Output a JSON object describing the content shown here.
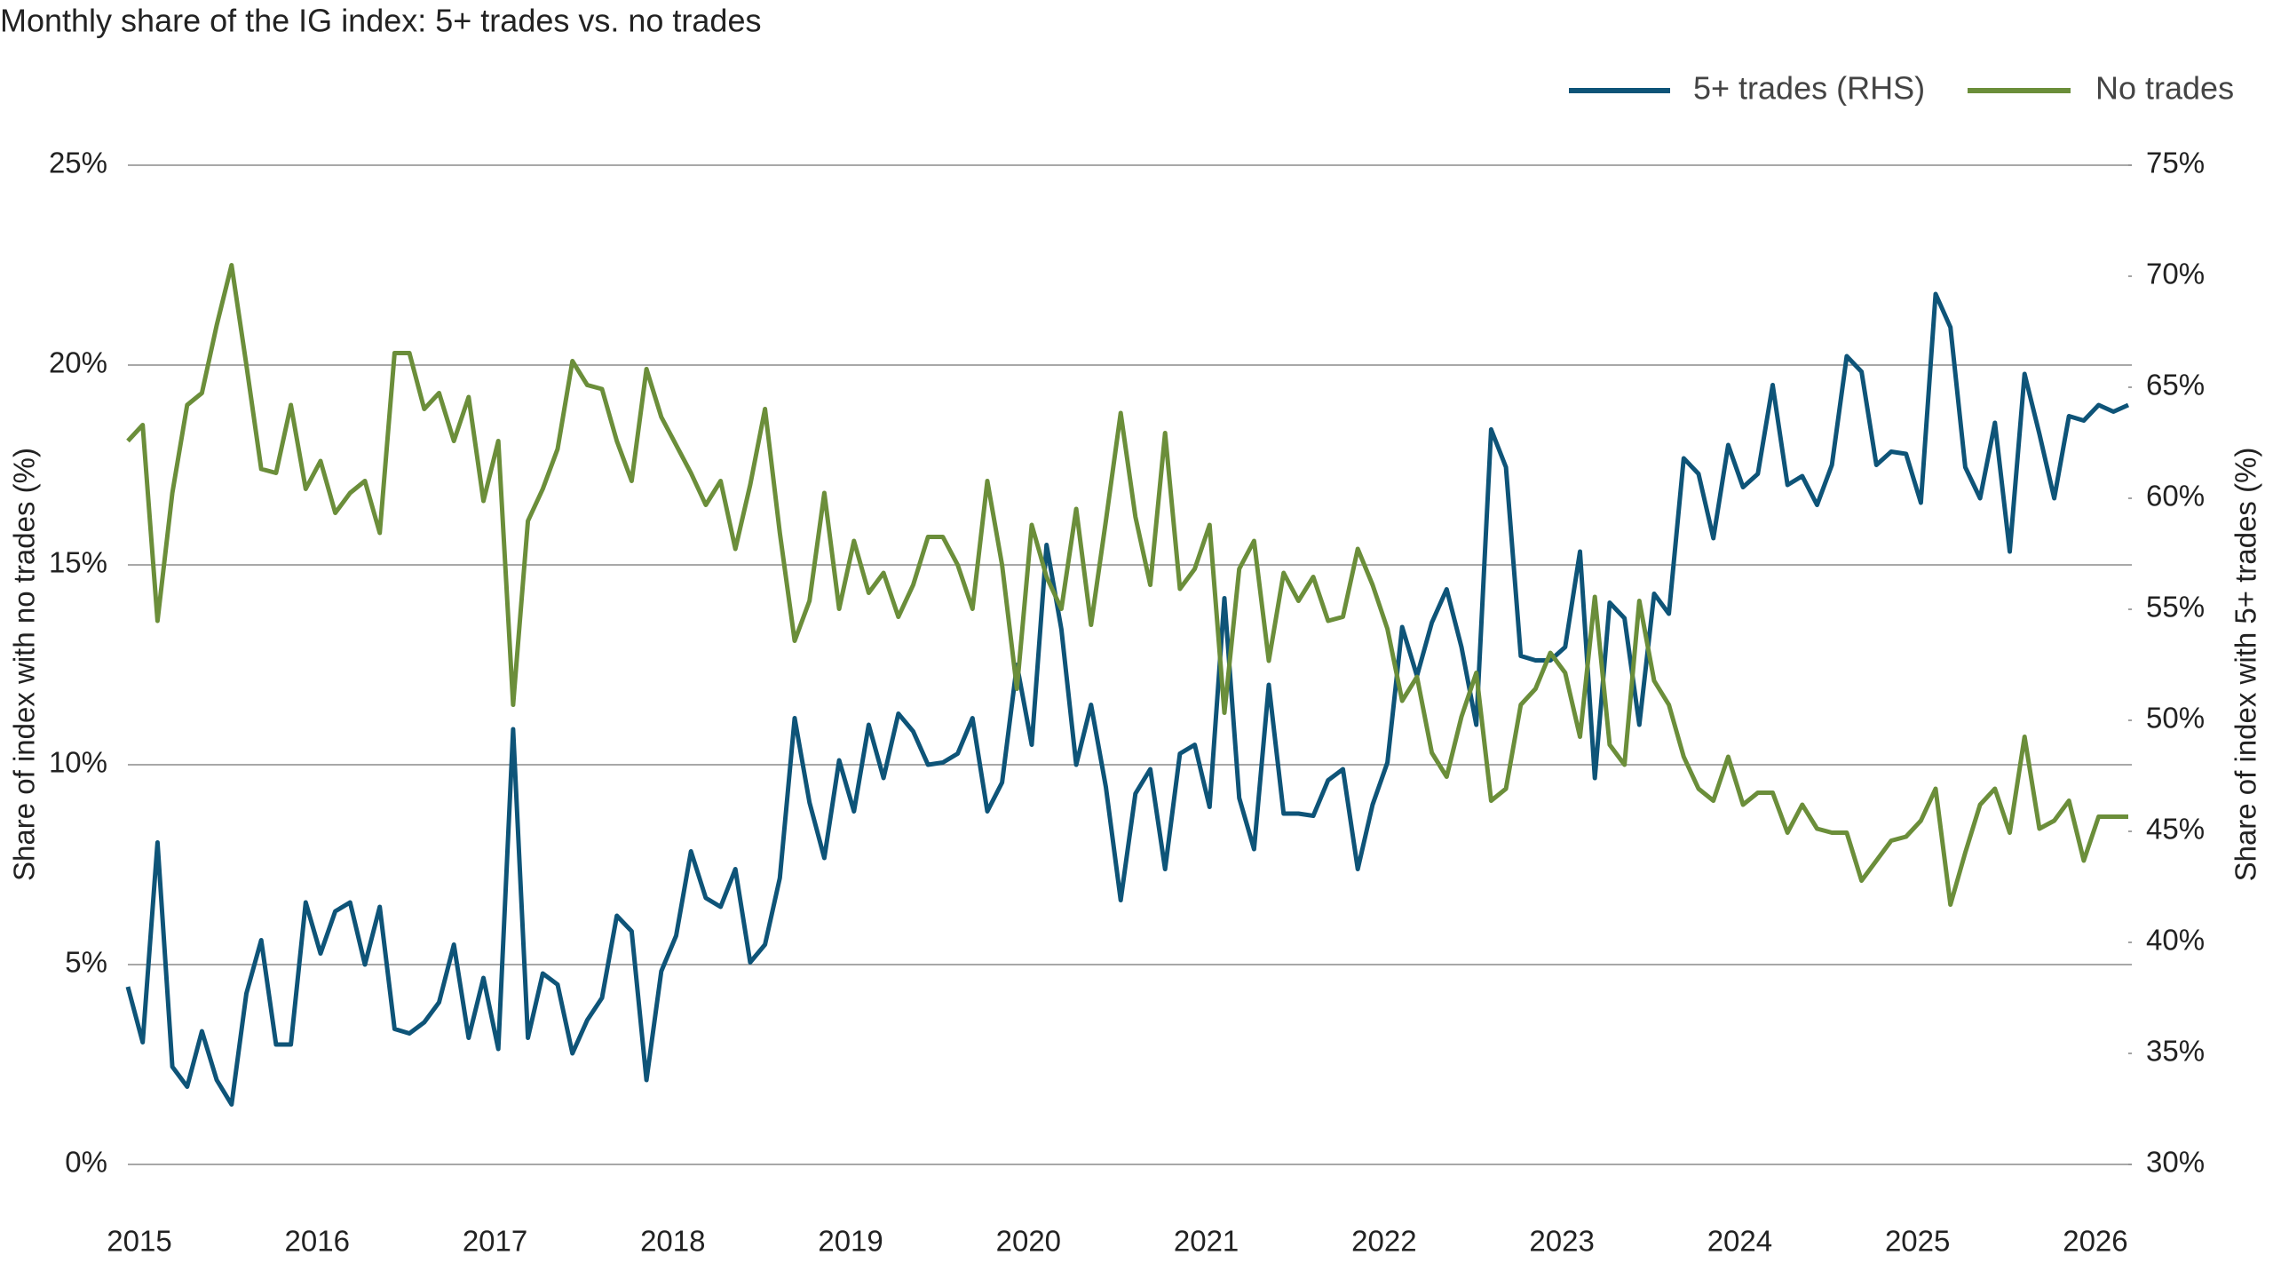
{
  "chart_data": {
    "type": "line",
    "title": "Monthly share of the IG index: 5+ trades vs. no trades",
    "y_label": "Share of index with no trades (%)",
    "y2_label": "Share of index with 5+ trades (%)",
    "categories": [
      "2015",
      null,
      null,
      null,
      null,
      null,
      null,
      null,
      null,
      null,
      null,
      null,
      "2016",
      null,
      null,
      null,
      null,
      null,
      null,
      null,
      null,
      null,
      null,
      null,
      "2017",
      null,
      null,
      null,
      null,
      null,
      null,
      null,
      null,
      null,
      null,
      null,
      "2018",
      null,
      null,
      null,
      null,
      null,
      null,
      null,
      null,
      null,
      null,
      null,
      "2019",
      null,
      null,
      null,
      null,
      null,
      null,
      null,
      null,
      null,
      null,
      null,
      "2020",
      null,
      null,
      null,
      null,
      null,
      null,
      null,
      null,
      null,
      null,
      null,
      "2021",
      null,
      null,
      null,
      null,
      null,
      null,
      null,
      null,
      null,
      null,
      null,
      "2022",
      null,
      null,
      null,
      null,
      null,
      null,
      null,
      null,
      null,
      null,
      null,
      "2023",
      null,
      null,
      null,
      null,
      null,
      null,
      null,
      null,
      null,
      null,
      null,
      "2024",
      null,
      null,
      null,
      null,
      null,
      null,
      null,
      null,
      null,
      null,
      null,
      "2025",
      null,
      null,
      null,
      null,
      null,
      null,
      null,
      null,
      null,
      null,
      null,
      "2026",
      null,
      null,
      null
    ],
    "ylim": [
      0,
      25
    ],
    "yticks": [
      {
        "value": 0,
        "label": "0%"
      },
      {
        "value": 5,
        "label": "5%"
      },
      {
        "value": 10,
        "label": "10%"
      },
      {
        "value": 15,
        "label": "15%"
      },
      {
        "value": 20,
        "label": "20%"
      },
      {
        "value": 25,
        "label": "25%"
      }
    ],
    "y2lim": [
      30,
      75
    ],
    "y2ticks": [
      {
        "value": 30,
        "label": "30%"
      },
      {
        "value": 35,
        "label": "35%"
      },
      {
        "value": 40,
        "label": "40%"
      },
      {
        "value": 45,
        "label": "45%"
      },
      {
        "value": 50,
        "label": "50%"
      },
      {
        "value": 55,
        "label": "55%"
      },
      {
        "value": 60,
        "label": "60%"
      },
      {
        "value": 65,
        "label": "65%"
      },
      {
        "value": 70,
        "label": "70%"
      },
      {
        "value": 75,
        "label": "75%"
      }
    ],
    "grid": true,
    "legend": "top-right",
    "series": [
      {
        "name": "5+ trades (RHS)",
        "color": "#0e5478",
        "axis": "y2",
        "values": [
          38.0,
          35.5,
          44.5,
          34.4,
          33.5,
          36.0,
          33.8,
          32.7,
          37.7,
          40.1,
          35.4,
          35.4,
          41.8,
          39.5,
          41.4,
          41.8,
          39.0,
          41.6,
          36.1,
          35.9,
          36.4,
          37.3,
          39.9,
          35.7,
          38.4,
          35.2,
          49.6,
          35.7,
          38.6,
          38.1,
          35.0,
          36.5,
          37.5,
          41.2,
          40.5,
          33.8,
          38.7,
          40.3,
          44.1,
          42.0,
          41.6,
          43.3,
          39.1,
          39.9,
          42.9,
          50.1,
          46.3,
          43.8,
          48.2,
          45.9,
          49.8,
          47.4,
          50.3,
          49.5,
          48.0,
          48.1,
          48.5,
          50.1,
          45.9,
          47.2,
          52.5,
          48.9,
          57.9,
          54.1,
          48.0,
          50.7,
          47.0,
          41.9,
          46.7,
          47.8,
          43.3,
          48.5,
          48.9,
          46.1,
          55.5,
          46.5,
          44.2,
          51.6,
          45.8,
          45.8,
          45.7,
          47.3,
          47.8,
          43.3,
          46.2,
          48.1,
          54.2,
          52.0,
          54.4,
          55.9,
          53.3,
          49.8,
          63.1,
          61.4,
          52.9,
          52.7,
          52.7,
          53.3,
          57.6,
          47.4,
          55.3,
          54.6,
          49.8,
          55.7,
          54.8,
          61.8,
          61.1,
          58.2,
          62.4,
          60.5,
          61.1,
          65.1,
          60.6,
          61.0,
          59.7,
          61.5,
          66.4,
          65.7,
          61.5,
          62.1,
          62.0,
          59.8,
          69.2,
          67.7,
          61.4,
          60.0,
          63.4,
          57.6,
          65.6,
          62.9,
          60.0,
          63.7,
          63.5,
          64.2,
          63.9,
          64.2
        ]
      },
      {
        "name": "No trades",
        "color": "#6b8e3a",
        "axis": "y",
        "values": [
          18.1,
          18.5,
          13.6,
          16.8,
          19.0,
          19.3,
          21.0,
          22.5,
          20.0,
          17.4,
          17.3,
          19.0,
          16.9,
          17.6,
          16.3,
          16.8,
          17.1,
          15.8,
          20.3,
          20.3,
          18.9,
          19.3,
          18.1,
          19.2,
          16.6,
          18.1,
          11.5,
          16.1,
          16.9,
          17.9,
          20.1,
          19.5,
          19.4,
          18.1,
          17.1,
          19.9,
          18.7,
          18.0,
          17.3,
          16.5,
          17.1,
          15.4,
          17.0,
          18.9,
          15.8,
          13.1,
          14.1,
          16.8,
          13.9,
          15.6,
          14.3,
          14.8,
          13.7,
          14.5,
          15.7,
          15.7,
          15.0,
          13.9,
          17.1,
          15.0,
          11.9,
          16.0,
          14.7,
          13.9,
          16.4,
          13.5,
          16.1,
          18.8,
          16.2,
          14.5,
          18.3,
          14.4,
          14.9,
          16.0,
          11.3,
          14.9,
          15.6,
          12.6,
          14.8,
          14.1,
          14.7,
          13.6,
          13.7,
          15.4,
          14.5,
          13.4,
          11.6,
          12.2,
          10.3,
          9.7,
          11.2,
          12.3,
          9.1,
          9.4,
          11.5,
          11.9,
          12.8,
          12.3,
          10.7,
          14.2,
          10.5,
          10.0,
          14.1,
          12.1,
          11.5,
          10.2,
          9.4,
          9.1,
          10.2,
          9.0,
          9.3,
          9.3,
          8.3,
          9.0,
          8.4,
          8.3,
          8.3,
          7.1,
          7.6,
          8.1,
          8.2,
          8.6,
          9.4,
          6.5,
          7.8,
          9.0,
          9.4,
          8.3,
          10.7,
          8.4,
          8.6,
          9.1,
          7.6,
          8.7,
          8.7,
          8.7
        ]
      }
    ]
  }
}
